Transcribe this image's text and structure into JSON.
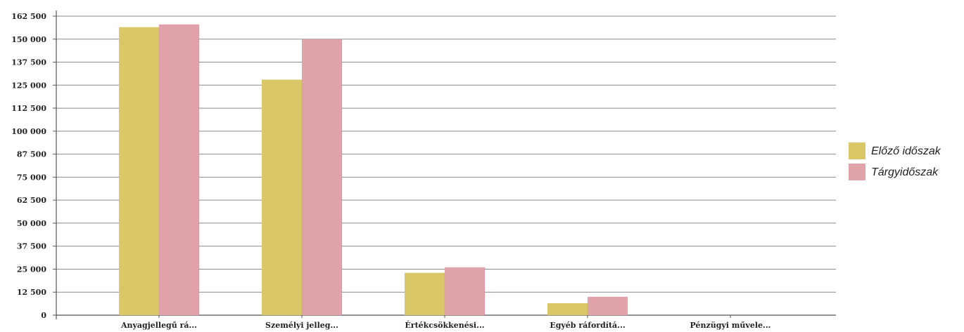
{
  "chart_data": {
    "type": "bar",
    "title": "",
    "xlabel": "",
    "ylabel": "",
    "ylim": [
      0,
      162500
    ],
    "ytick_step": 12500,
    "ytick_labels": [
      "0",
      "12 500",
      "25 000",
      "37 500",
      "50 000",
      "62 500",
      "75 000",
      "87 500",
      "100 000",
      "112 500",
      "125 000",
      "137 500",
      "150 000",
      "162 500"
    ],
    "categories": [
      "Anyagjellegű rá...",
      "Személyi jelleg...",
      "Értékcsökkenési...",
      "Egyéb ráfordítá...",
      "Pénzügyi művele..."
    ],
    "series": [
      {
        "name": "Előző időszak",
        "color": "#d9c768",
        "values": [
          156500,
          128000,
          23000,
          6500,
          0
        ]
      },
      {
        "name": "Tárgyidőszak",
        "color": "#e0a3aa",
        "values": [
          158000,
          150000,
          26000,
          10000,
          0
        ]
      }
    ],
    "grid": true,
    "legend_position": "right"
  }
}
